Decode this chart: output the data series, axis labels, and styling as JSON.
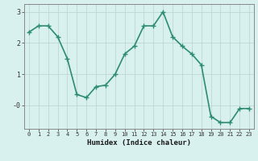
{
  "xlabel": "Humidex (Indice chaleur)",
  "x": [
    0,
    1,
    2,
    3,
    4,
    5,
    6,
    7,
    8,
    9,
    10,
    11,
    12,
    13,
    14,
    15,
    16,
    17,
    18,
    19,
    20,
    21,
    22,
    23
  ],
  "y": [
    2.35,
    2.55,
    2.55,
    2.2,
    1.5,
    0.35,
    0.25,
    0.6,
    0.65,
    1.0,
    1.65,
    1.9,
    2.55,
    2.55,
    3.0,
    2.2,
    1.9,
    1.65,
    1.3,
    -0.35,
    -0.55,
    -0.55,
    -0.1,
    -0.1
  ],
  "line_color": "#2e8b74",
  "marker": "+",
  "markersize": 4,
  "linewidth": 1.2,
  "ylim": [
    -0.75,
    3.25
  ],
  "bg_color": "#d8f0ee",
  "grid_color": "#c0d8d4",
  "spine_color": "#888888",
  "tick_color": "#333333",
  "label_color": "#1a1a1a"
}
